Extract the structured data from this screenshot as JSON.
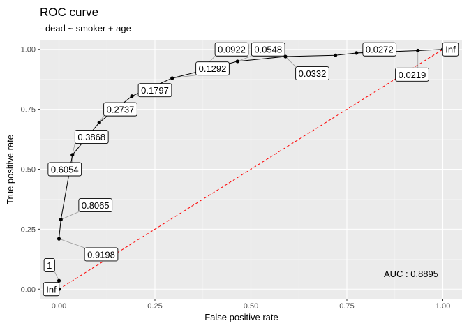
{
  "chart_data": {
    "type": "line",
    "title": "ROC curve",
    "subtitle": "- dead ~ smoker + age",
    "xlabel": "False positive rate",
    "ylabel": "True positive rate",
    "xlim": [
      -0.05,
      1.05
    ],
    "ylim": [
      -0.04,
      1.04
    ],
    "xticks": [
      0,
      0.25,
      0.5,
      0.75,
      1
    ],
    "xtick_labels": [
      "0.00",
      "0.25",
      "0.50",
      "0.75",
      "1.00"
    ],
    "yticks": [
      0,
      0.25,
      0.5,
      0.75,
      1
    ],
    "ytick_labels": [
      "0.00",
      "0.25",
      "0.50",
      "0.75",
      "1.00"
    ],
    "grid": true,
    "auc_label": "AUC : 0.8895",
    "roc_points": [
      {
        "x": 0.0,
        "y": 0.0
      },
      {
        "x": 0.0,
        "y": 0.035
      },
      {
        "x": 0.0,
        "y": 0.21
      },
      {
        "x": 0.005,
        "y": 0.29
      },
      {
        "x": 0.035,
        "y": 0.56
      },
      {
        "x": 0.105,
        "y": 0.695
      },
      {
        "x": 0.19,
        "y": 0.805
      },
      {
        "x": 0.295,
        "y": 0.88
      },
      {
        "x": 0.37,
        "y": 0.91
      },
      {
        "x": 0.465,
        "y": 0.95
      },
      {
        "x": 0.59,
        "y": 0.97
      },
      {
        "x": 0.72,
        "y": 0.975
      },
      {
        "x": 0.775,
        "y": 0.985
      },
      {
        "x": 0.935,
        "y": 0.995
      },
      {
        "x": 1.0,
        "y": 1.0
      }
    ],
    "cutoff_labels": [
      {
        "text": "Inf",
        "px": 0.0,
        "py": 0.0,
        "lx": -0.02,
        "ly": 0.0
      },
      {
        "text": "1",
        "px": 0.0,
        "py": 0.035,
        "lx": -0.025,
        "ly": 0.1
      },
      {
        "text": "0.9198",
        "px": 0.0,
        "py": 0.21,
        "lx": 0.11,
        "ly": 0.145
      },
      {
        "text": "0.8065",
        "px": 0.005,
        "py": 0.29,
        "lx": 0.095,
        "ly": 0.35
      },
      {
        "text": "0.6054",
        "px": 0.035,
        "py": 0.56,
        "lx": 0.015,
        "ly": 0.5
      },
      {
        "text": "0.3868",
        "px": 0.035,
        "py": 0.56,
        "lx": 0.085,
        "ly": 0.635
      },
      {
        "text": "0.2737",
        "px": 0.105,
        "py": 0.695,
        "lx": 0.16,
        "ly": 0.75
      },
      {
        "text": "0.1797",
        "px": 0.19,
        "py": 0.805,
        "lx": 0.25,
        "ly": 0.83
      },
      {
        "text": "0.1292",
        "px": 0.295,
        "py": 0.88,
        "lx": 0.4,
        "ly": 0.92
      },
      {
        "text": "0.0922",
        "px": 0.37,
        "py": 0.91,
        "lx": 0.45,
        "ly": 1.0
      },
      {
        "text": "0.0548",
        "px": 0.465,
        "py": 0.95,
        "lx": 0.545,
        "ly": 1.0
      },
      {
        "text": "0.0332",
        "px": 0.59,
        "py": 0.97,
        "lx": 0.66,
        "ly": 0.9
      },
      {
        "text": "0.0272",
        "px": 0.775,
        "py": 0.985,
        "lx": 0.835,
        "ly": 1.0
      },
      {
        "text": "0.0219",
        "px": 0.935,
        "py": 0.995,
        "lx": 0.92,
        "ly": 0.895
      },
      {
        "text": "Inf",
        "px": 1.0,
        "py": 1.0,
        "lx": 1.02,
        "ly": 1.0
      }
    ],
    "diagonal": {
      "from": [
        0,
        0
      ],
      "to": [
        1,
        1
      ]
    },
    "colors": {
      "panel": "#ebebeb",
      "grid_major": "#ffffff",
      "grid_minor": "#f5f5f5",
      "curve": "#000000",
      "diagonal": "#ff0000",
      "tick_text": "#4d4d4d"
    }
  }
}
